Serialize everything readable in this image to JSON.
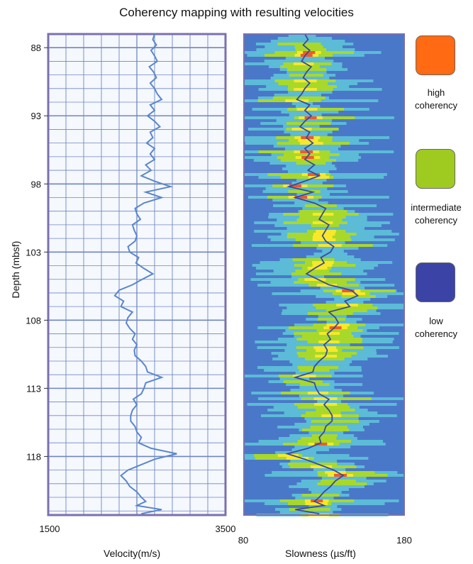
{
  "title": "Coherency mapping with resulting velocities",
  "legend": [
    {
      "label_line1": "high",
      "label_line2": "coherency",
      "color": "#ff6a12"
    },
    {
      "label_line1": "intermediate",
      "label_line2": "coherency",
      "color": "#9fcb20"
    },
    {
      "label_line1": "low",
      "label_line2": "coherency",
      "color": "#3b43a6"
    }
  ],
  "chart_data": [
    {
      "type": "line",
      "xlabel": "Velocity(m/s)",
      "ylabel": "Depth (mbsf)",
      "xlim": [
        1500,
        3500
      ],
      "xticks": [
        "1500",
        "3500"
      ],
      "ylim": [
        87.0,
        122.3
      ],
      "yticks": [
        "88",
        "93",
        "98",
        "103",
        "108",
        "113",
        "118"
      ],
      "grid": true,
      "line_color": "#5b86cc",
      "series": [
        {
          "x": [
            2700,
            2680,
            2720,
            2660,
            2700,
            2730,
            2640,
            2690,
            2720,
            2650,
            2700,
            2730,
            2780,
            2650,
            2700,
            2620,
            2700,
            2760,
            2650,
            2680,
            2610,
            2700,
            2650,
            2700,
            2600,
            2660,
            2550,
            2700,
            2880,
            2600,
            2780,
            2580,
            2480,
            2500,
            2540,
            2450,
            2470,
            2500,
            2480,
            2400,
            2420,
            2520,
            2490,
            2580,
            2680,
            2560,
            2450,
            2300,
            2250,
            2350,
            2320,
            2450,
            2400,
            2380,
            2420,
            2480,
            2450,
            2500,
            2470,
            2480,
            2550,
            2600,
            2620,
            2780,
            2600,
            2580,
            2550,
            2460,
            2500,
            2450,
            2430,
            2430,
            2480,
            2500,
            2550,
            2520,
            2660,
            2950,
            2700,
            2550,
            2400,
            2320,
            2380,
            2420,
            2500,
            2550,
            2600,
            2500,
            2780,
            2550
          ],
          "y": [
            87.0,
            87.4,
            87.8,
            88.2,
            88.6,
            89.0,
            89.4,
            89.8,
            90.2,
            90.6,
            91.0,
            91.4,
            91.8,
            92.2,
            92.6,
            93.0,
            93.4,
            93.8,
            94.2,
            94.6,
            95.0,
            95.4,
            95.8,
            96.2,
            96.6,
            97.0,
            97.4,
            97.8,
            98.2,
            98.6,
            99.0,
            99.4,
            99.8,
            100.2,
            100.6,
            101.0,
            101.4,
            101.8,
            102.2,
            102.6,
            103.0,
            103.4,
            103.8,
            104.2,
            104.6,
            105.0,
            105.4,
            105.8,
            106.2,
            106.6,
            107.0,
            107.4,
            107.8,
            108.2,
            108.6,
            109.0,
            109.4,
            109.8,
            110.2,
            110.6,
            111.0,
            111.4,
            111.8,
            112.2,
            112.6,
            113.0,
            113.4,
            113.8,
            114.2,
            114.6,
            115.0,
            115.4,
            115.8,
            116.2,
            116.6,
            117.0,
            117.4,
            117.8,
            118.2,
            118.6,
            119.0,
            119.4,
            119.8,
            120.2,
            120.6,
            121.0,
            121.3,
            121.6,
            121.9,
            122.2
          ]
        }
      ]
    },
    {
      "type": "heatmap",
      "xlabel": "Slowness (µs/ft)",
      "xlim": [
        80,
        180
      ],
      "xticks": [
        "80",
        "180"
      ],
      "ylim": [
        87.0,
        122.3
      ],
      "line_color": "#3a4a9a",
      "colors": [
        "#4a78c8",
        "#5fc7d9",
        "#a8d92a",
        "#f7e829",
        "#f05a2a"
      ],
      "series": [
        {
          "x": [
            118,
            120,
            117,
            121,
            118,
            116,
            122,
            119,
            117,
            121,
            118,
            116,
            113,
            121,
            118,
            122,
            118,
            115,
            121,
            119,
            123,
            118,
            121,
            118,
            124,
            120,
            127,
            118,
            108,
            123,
            112,
            124,
            131,
            129,
            127,
            133,
            131,
            129,
            131,
            136,
            134,
            128,
            130,
            124,
            119,
            126,
            133,
            147,
            151,
            143,
            146,
            133,
            137,
            139,
            136,
            132,
            134,
            130,
            132,
            131,
            127,
            124,
            123,
            112,
            124,
            125,
            127,
            133,
            130,
            133,
            135,
            135,
            131,
            130,
            127,
            128,
            120,
            107,
            118,
            127,
            136,
            142,
            137,
            134,
            130,
            127,
            124,
            130,
            112,
            127
          ],
          "y": [
            87.0,
            87.4,
            87.8,
            88.2,
            88.6,
            89.0,
            89.4,
            89.8,
            90.2,
            90.6,
            91.0,
            91.4,
            91.8,
            92.2,
            92.6,
            93.0,
            93.4,
            93.8,
            94.2,
            94.6,
            95.0,
            95.4,
            95.8,
            96.2,
            96.6,
            97.0,
            97.4,
            97.8,
            98.2,
            98.6,
            99.0,
            99.4,
            99.8,
            100.2,
            100.6,
            101.0,
            101.4,
            101.8,
            102.2,
            102.6,
            103.0,
            103.4,
            103.8,
            104.2,
            104.6,
            105.0,
            105.4,
            105.8,
            106.2,
            106.6,
            107.0,
            107.4,
            107.8,
            108.2,
            108.6,
            109.0,
            109.4,
            109.8,
            110.2,
            110.6,
            111.0,
            111.4,
            111.8,
            112.2,
            112.6,
            113.0,
            113.4,
            113.8,
            114.2,
            114.6,
            115.0,
            115.4,
            115.8,
            116.2,
            116.6,
            117.0,
            117.4,
            117.8,
            118.2,
            118.6,
            119.0,
            119.4,
            119.8,
            120.2,
            120.6,
            121.0,
            121.3,
            121.6,
            121.9,
            122.2
          ]
        }
      ]
    }
  ]
}
